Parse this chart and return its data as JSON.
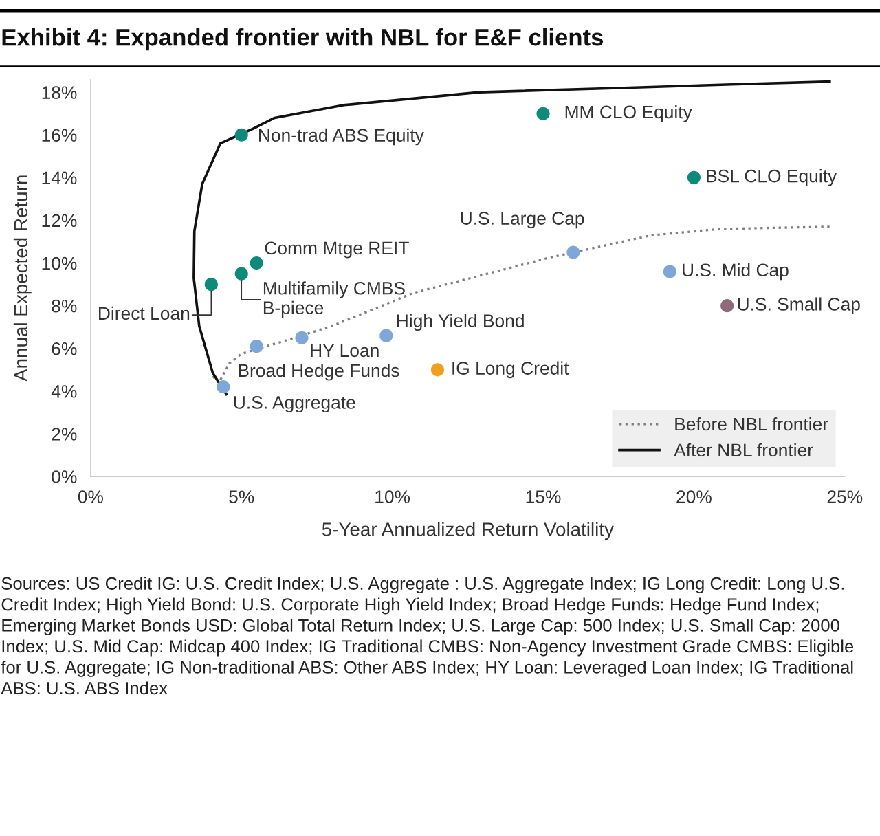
{
  "chart_data": {
    "type": "scatter",
    "title": "Exhibit 4: Expanded frontier with NBL for E&F clients",
    "xlabel": "5-Year Annualized Return Volatility",
    "ylabel": "Annual Expected Return",
    "xlim": [
      0,
      25
    ],
    "ylim": [
      0,
      18.6
    ],
    "xticks": [
      {
        "value": 0,
        "label": "0%"
      },
      {
        "value": 5,
        "label": "5%"
      },
      {
        "value": 10,
        "label": "10%"
      },
      {
        "value": 15,
        "label": "15%"
      },
      {
        "value": 20,
        "label": "20%"
      },
      {
        "value": 25,
        "label": "25%"
      }
    ],
    "yticks": [
      {
        "value": 0,
        "label": "0%"
      },
      {
        "value": 2,
        "label": "2%"
      },
      {
        "value": 4,
        "label": "4%"
      },
      {
        "value": 6,
        "label": "6%"
      },
      {
        "value": 8,
        "label": "8%"
      },
      {
        "value": 10,
        "label": "10%"
      },
      {
        "value": 12,
        "label": "12%"
      },
      {
        "value": 14,
        "label": "14%"
      },
      {
        "value": 16,
        "label": "16%"
      },
      {
        "value": 18,
        "label": "18%"
      }
    ],
    "grid": false,
    "legend": "bottom right",
    "series": [
      {
        "type": "line",
        "name": "Before NBL frontier",
        "color": "#808080",
        "line_style": "dotted",
        "marker": "none",
        "x": [
          4.05,
          4.25,
          4.6,
          5.0,
          6.3,
          8.0,
          10.7,
          15.2,
          18.6,
          20.9,
          24.5
        ],
        "values": [
          4.7,
          4.4,
          5.3,
          5.75,
          6.3,
          7.05,
          8.6,
          10.25,
          11.3,
          11.6,
          11.7
        ]
      },
      {
        "type": "line",
        "name": "After NBL frontier",
        "color": "#111111",
        "line_style": "solid",
        "marker": "none",
        "x": [
          4.5,
          4.05,
          3.6,
          3.42,
          3.44,
          3.7,
          4.3,
          5.4,
          6.1,
          8.4,
          12.9,
          17.5,
          22.0,
          24.5
        ],
        "values": [
          3.85,
          4.85,
          7.05,
          9.3,
          11.5,
          13.7,
          15.6,
          16.3,
          16.8,
          17.4,
          18.0,
          18.2,
          18.4,
          18.5
        ]
      },
      {
        "marker": "circle",
        "x": [
          5.0,
          15.0,
          20.0,
          5.5,
          5.0,
          4.0,
          16.0,
          19.2,
          21.1,
          9.8,
          7.0,
          5.5,
          11.5,
          4.4
        ],
        "values": [
          16.0,
          17.0,
          14.0,
          10.0,
          9.5,
          9.0,
          10.5,
          9.6,
          8.0,
          6.6,
          6.5,
          6.1,
          5.0,
          4.2
        ],
        "colors": [
          "#0e8a7a",
          "#0e8a7a",
          "#0e8a7a",
          "#0e8a7a",
          "#0e8a7a",
          "#0e8a7a",
          "#7ea7d8",
          "#7ea7d8",
          "#8e6a78",
          "#7ea7d8",
          "#7ea7d8",
          "#7ea7d8",
          "#f0a01c",
          "#7ea7d8"
        ]
      }
    ],
    "annotations": [
      {
        "text": "Non-trad ABS Equity",
        "x": 5.0,
        "y": 16.0
      },
      {
        "text": "MM CLO Equity",
        "x": 15.0,
        "y": 17.0
      },
      {
        "text": "BSL CLO Equity",
        "x": 20.0,
        "y": 14.0
      },
      {
        "text": "Comm Mtge REIT",
        "x": 5.5,
        "y": 10.0
      },
      {
        "text": "Multifamily CMBS\nB-piece",
        "x": 5.0,
        "y": 9.5
      },
      {
        "text": "Direct Loan",
        "x": 4.0,
        "y": 9.0
      },
      {
        "text": "U.S. Large Cap",
        "x": 16.0,
        "y": 10.5
      },
      {
        "text": "U.S. Mid Cap",
        "x": 19.2,
        "y": 9.6
      },
      {
        "text": "U.S. Small Cap",
        "x": 21.1,
        "y": 8.0
      },
      {
        "text": "High Yield Bond",
        "x": 9.8,
        "y": 6.6
      },
      {
        "text": "HY Loan",
        "x": 7.0,
        "y": 6.5
      },
      {
        "text": "Broad Hedge Funds",
        "x": 5.5,
        "y": 6.1
      },
      {
        "text": "IG Long Credit",
        "x": 11.5,
        "y": 5.0
      },
      {
        "text": "U.S. Aggregate",
        "x": 4.4,
        "y": 4.2
      },
      "Sources: US Credit IG: U.S. Credit Index; U.S. Aggregate : U.S. Aggregate Index; IG Long Credit: Long U.S. Credit Index; High Yield Bond: U.S. Corporate High Yield Index; Broad Hedge Funds: Hedge Fund Index; Emerging Market Bonds USD: Global Total Return Index; U.S. Large Cap: 500 Index; U.S. Small Cap: 2000 Index; U.S. Mid Cap: Midcap 400 Index; IG Traditional CMBS: Non-Agency Investment Grade CMBS: Eligible for U.S. Aggregate; IG Non-traditional ABS: Other ABS Index; HY Loan: Leveraged Loan Index; IG Traditional ABS: U.S. ABS Index"
    ]
  }
}
